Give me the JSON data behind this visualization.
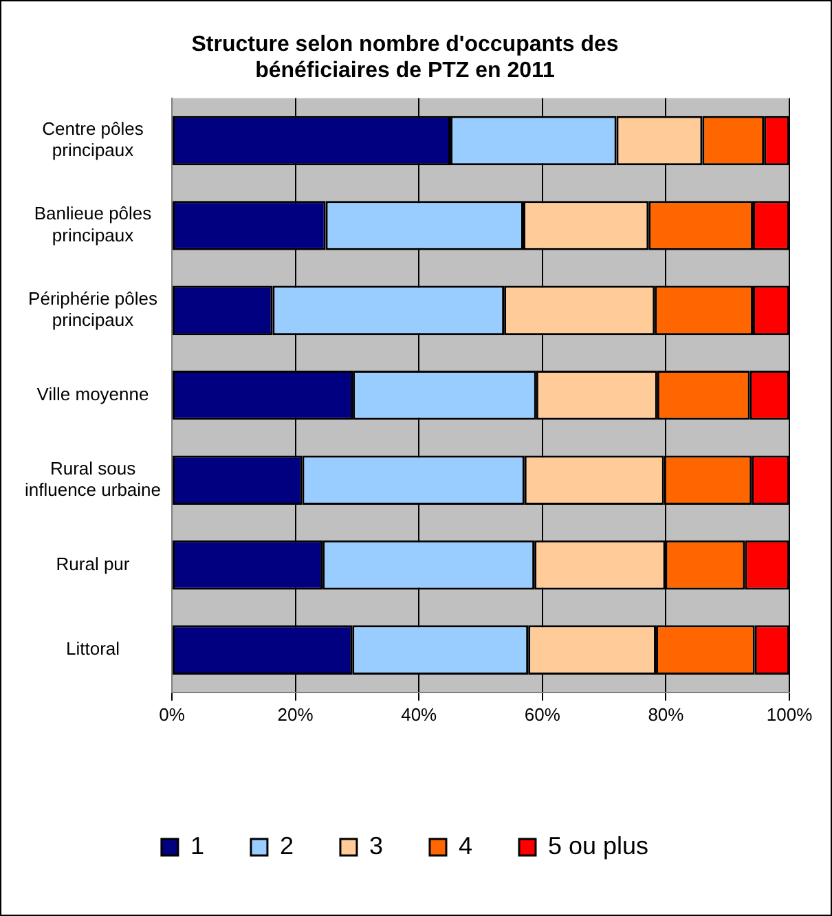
{
  "chart_data": {
    "type": "bar",
    "orientation": "horizontal",
    "stacked": true,
    "title": "Structure selon nombre d'occupants des bénéficiaires de PTZ en 2011",
    "categories": [
      "Centre pôles principaux",
      "Banlieue pôles principaux",
      "Périphérie pôles principaux",
      "Ville moyenne",
      "Rural sous influence urbaine",
      "Rural pur",
      "Littoral"
    ],
    "series": [
      {
        "name": "1",
        "color": "#000080",
        "values": [
          45.1,
          24.9,
          16.3,
          29.3,
          21.1,
          24.4,
          29.2
        ]
      },
      {
        "name": "2",
        "color": "#99ccff",
        "values": [
          26.9,
          32.0,
          37.5,
          29.7,
          36.0,
          34.3,
          28.5
        ]
      },
      {
        "name": "3",
        "color": "#ffcc99",
        "values": [
          13.9,
          20.3,
          24.4,
          19.6,
          22.6,
          21.2,
          20.7
        ]
      },
      {
        "name": "4",
        "color": "#ff6600",
        "values": [
          10.0,
          16.9,
          15.9,
          15.0,
          14.2,
          12.9,
          16.0
        ]
      },
      {
        "name": "5 ou plus",
        "color": "#ff0000",
        "values": [
          4.1,
          5.9,
          5.9,
          6.4,
          6.1,
          7.2,
          5.6
        ]
      }
    ],
    "xlim": [
      0,
      100
    ],
    "xticks": [
      {
        "value": 0,
        "label": "0%"
      },
      {
        "value": 20,
        "label": "20%"
      },
      {
        "value": 40,
        "label": "40%"
      },
      {
        "value": 60,
        "label": "60%"
      },
      {
        "value": 80,
        "label": "80%"
      },
      {
        "value": 100,
        "label": "100%"
      }
    ],
    "grid": "x",
    "legend": "bottom"
  }
}
